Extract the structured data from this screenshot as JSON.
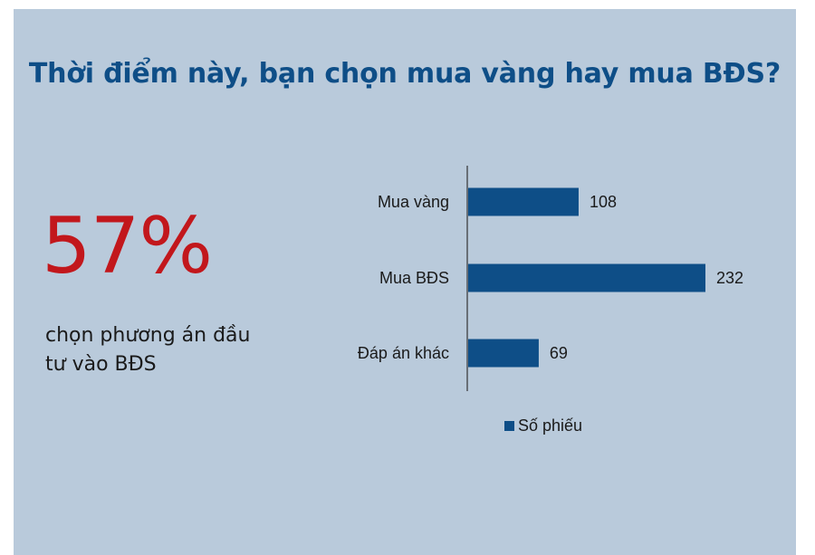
{
  "title": "Thời điểm này, bạn chọn mua vàng hay mua BĐS?",
  "highlight": {
    "value": "57%",
    "caption_line1": "chọn phương án đầu",
    "caption_line2": "tư vào BĐS",
    "color": "#c2171c"
  },
  "colors": {
    "background": "#b9cadb",
    "bar": "#0e4e87",
    "title": "#0e4e87"
  },
  "chart_data": {
    "type": "bar",
    "orientation": "horizontal",
    "categories": [
      "Mua vàng",
      "Mua BĐS",
      "Đáp án khác"
    ],
    "series": [
      {
        "name": "Số phiếu",
        "values": [
          108,
          232,
          69
        ]
      }
    ],
    "data_labels": true,
    "legend": "bottom",
    "grid": false,
    "xlim": [
      0,
      240
    ]
  }
}
